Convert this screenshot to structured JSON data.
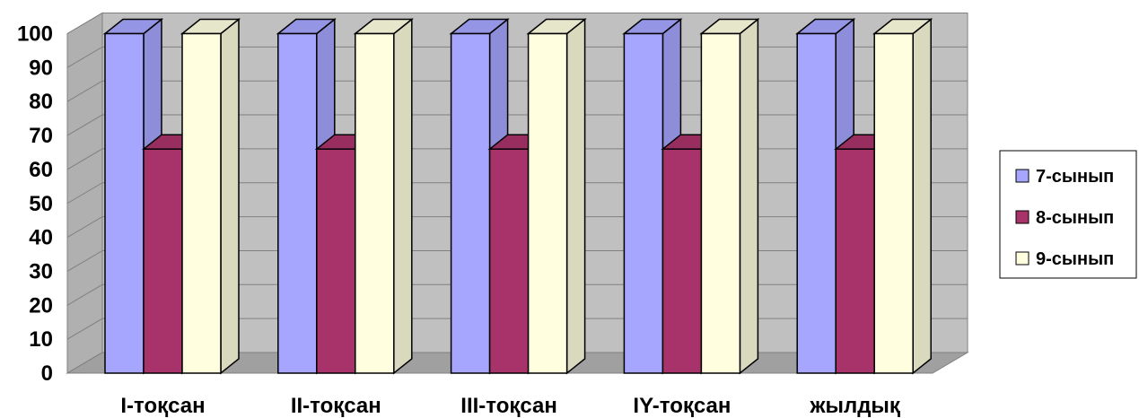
{
  "chart_data": {
    "type": "bar",
    "style": "3d-clustered-column",
    "categories": [
      "I-тоқсан",
      "II-тоқсан",
      "III-тоқсан",
      "IY-тоқсан",
      "жылдық"
    ],
    "series": [
      {
        "name": "7-сынып",
        "values": [
          100,
          100,
          100,
          100,
          100
        ],
        "color": "#a6a6ff"
      },
      {
        "name": "8-сынып",
        "values": [
          66,
          66,
          66,
          66,
          66
        ],
        "color": "#a8336a"
      },
      {
        "name": "9-сынып",
        "values": [
          100,
          100,
          100,
          100,
          100
        ],
        "color": "#ffffe0"
      }
    ],
    "ylim": [
      0,
      100
    ],
    "yticks": [
      "0",
      "10",
      "20",
      "30",
      "40",
      "50",
      "60",
      "70",
      "80",
      "90",
      "100"
    ],
    "grid": true,
    "legend_position": "right",
    "colors": {
      "wall": "#c0c0c0",
      "floor": "#a0a0a0",
      "gridline": "#808080",
      "outline": "#000000"
    }
  }
}
